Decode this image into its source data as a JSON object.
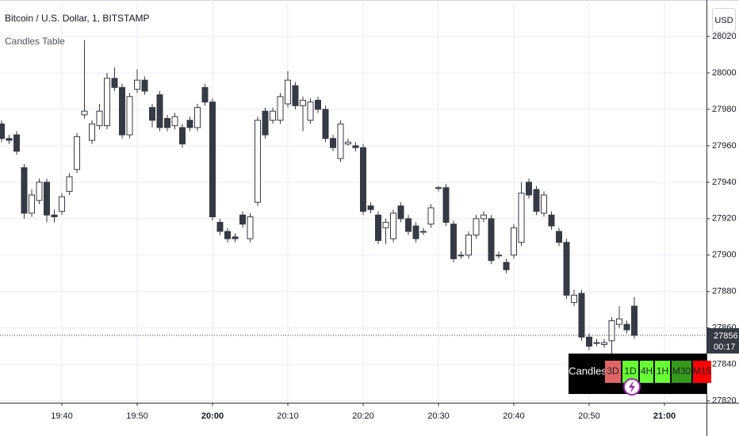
{
  "chart_data": {
    "type": "candlestick",
    "title": "Bitcoin / U.S. Dollar, 1, BITSTAMP",
    "subtitle": "Candles Table",
    "currency": "USD",
    "up_color": "#ffffff",
    "down_color": "#363a45",
    "border_color": "#363a45",
    "x": [
      "19:32",
      "19:33",
      "19:34",
      "19:35",
      "19:36",
      "19:37",
      "19:38",
      "19:39",
      "19:40",
      "19:41",
      "19:42",
      "19:43",
      "19:44",
      "19:45",
      "19:46",
      "19:47",
      "19:48",
      "19:49",
      "19:50",
      "19:51",
      "19:52",
      "19:53",
      "19:54",
      "19:55",
      "19:56",
      "19:57",
      "19:58",
      "19:59",
      "20:00",
      "20:01",
      "20:02",
      "20:03",
      "20:04",
      "20:05",
      "20:06",
      "20:07",
      "20:08",
      "20:09",
      "20:10",
      "20:11",
      "20:12",
      "20:13",
      "20:14",
      "20:15",
      "20:16",
      "20:17",
      "20:18",
      "20:19",
      "20:20",
      "20:21",
      "20:22",
      "20:23",
      "20:24",
      "20:25",
      "20:26",
      "20:27",
      "20:28",
      "20:29",
      "20:30",
      "20:31",
      "20:32",
      "20:33",
      "20:34",
      "20:35",
      "20:36",
      "20:37",
      "20:38",
      "20:39",
      "20:40",
      "20:41",
      "20:42",
      "20:43",
      "20:44",
      "20:45",
      "20:46",
      "20:47",
      "20:48",
      "20:49",
      "20:50",
      "20:51",
      "20:52",
      "20:53",
      "20:54",
      "20:55",
      "20:56"
    ],
    "open": [
      27972,
      27964,
      27966,
      27948,
      27923,
      27930,
      27940,
      27922,
      27924,
      27935,
      27947,
      27977,
      27963,
      27971,
      27971,
      27997,
      27992,
      27966,
      27991,
      27996,
      27981,
      27988,
      27975,
      27971,
      27970,
      27974,
      27970,
      27992,
      27984,
      27918,
      27913,
      27910,
      27922,
      27909,
      27929,
      27979,
      27974,
      27974,
      27983,
      27993,
      27982,
      27974,
      27985,
      27980,
      27964,
      27953,
      27961,
      27960,
      27959,
      27927,
      27922,
      27915,
      27909,
      27927,
      27920,
      27916,
      27913,
      27917,
      27937,
      27937,
      27917,
      27900,
      27900,
      27911,
      27920,
      27920,
      27900,
      27896,
      27900,
      27907,
      27940,
      27936,
      27923,
      27922,
      27913,
      27907,
      27874,
      27879,
      27855,
      27852,
      27851,
      27853,
      27862,
      27862,
      27872
    ],
    "high": [
      27974,
      27966,
      27968,
      27950,
      27936,
      27942,
      27942,
      27925,
      27934,
      27945,
      27967,
      28018,
      27974,
      27983,
      28000,
      28003,
      27994,
      27989,
      28002,
      27998,
      27983,
      27990,
      27977,
      27978,
      27972,
      27976,
      27983,
      27994,
      27986,
      27920,
      27915,
      27912,
      27924,
      27923,
      27976,
      27981,
      27981,
      27989,
      28001,
      27995,
      27987,
      27986,
      27987,
      27982,
      27966,
      27974,
      27964,
      27962,
      27961,
      27929,
      27924,
      27920,
      27925,
      27929,
      27922,
      27918,
      27915,
      27928,
      27938,
      27939,
      27919,
      27902,
      27913,
      27922,
      27924,
      27922,
      27902,
      27898,
      27917,
      27940,
      27942,
      27938,
      27935,
      27924,
      27915,
      27909,
      27881,
      27881,
      27857,
      27854,
      27854,
      27866,
      27872,
      27864,
      27877
    ],
    "low": [
      27962,
      27961,
      27955,
      27920,
      27921,
      27928,
      27918,
      27918,
      27922,
      27933,
      27945,
      27975,
      27961,
      27969,
      27969,
      27990,
      27964,
      27964,
      27989,
      27988,
      27970,
      27968,
      27968,
      27969,
      27959,
      27968,
      27968,
      27982,
      27919,
      27911,
      27907,
      27907,
      27915,
      27907,
      27927,
      27964,
      27972,
      27972,
      27981,
      27980,
      27968,
      27972,
      27978,
      27962,
      27957,
      27951,
      27960,
      27957,
      27922,
      27923,
      27906,
      27906,
      27907,
      27918,
      27911,
      27907,
      27911,
      27915,
      27935,
      27916,
      27896,
      27898,
      27898,
      27909,
      27918,
      27895,
      27898,
      27890,
      27898,
      27905,
      27931,
      27922,
      27921,
      27914,
      27905,
      27876,
      27872,
      27853,
      27848,
      27850,
      27849,
      27845,
      27860,
      27857,
      27854
    ],
    "close": [
      27964,
      27963,
      27957,
      27923,
      27933,
      27940,
      27922,
      27921,
      27932,
      27943,
      27965,
      27979,
      27972,
      27979,
      27997,
      27992,
      27966,
      27987,
      27996,
      27990,
      27974,
      27970,
      27970,
      27976,
      27961,
      27970,
      27981,
      27984,
      27921,
      27913,
      27909,
      27909,
      27917,
      27921,
      27974,
      27966,
      27979,
      27987,
      27996,
      27982,
      27985,
      27984,
      27980,
      27964,
      27959,
      27972,
      27962,
      27959,
      27924,
      27925,
      27908,
      27918,
      27923,
      27920,
      27913,
      27909,
      27913,
      27926,
      27937,
      27918,
      27898,
      27900,
      27911,
      27920,
      27922,
      27897,
      27900,
      27892,
      27915,
      27934,
      27933,
      27924,
      27933,
      27916,
      27907,
      27878,
      27878,
      27855,
      27850,
      27852,
      27852,
      27864,
      27865,
      27859,
      27856
    ],
    "xlim": [
      "19:32",
      "21:06"
    ],
    "xticks": [
      "19:40",
      "19:50",
      "20:00",
      "20:10",
      "20:20",
      "20:30",
      "20:40",
      "20:50",
      "21:00"
    ],
    "ylim": [
      27819,
      28040
    ],
    "yticks": [
      27820,
      27840,
      27860,
      27880,
      27900,
      27920,
      27940,
      27960,
      27980,
      28000,
      28020
    ],
    "grid": true,
    "last_price": 27856,
    "countdown": "00:17",
    "table": {
      "title": "Candles",
      "cells": [
        {
          "label": "3D",
          "color": "#e06666"
        },
        {
          "label": "1D",
          "color": "#66ff33"
        },
        {
          "label": "4H",
          "color": "#66ff33"
        },
        {
          "label": "1H",
          "color": "#66ff33"
        },
        {
          "label": "M30",
          "color": "#339a1a"
        },
        {
          "label": "M15",
          "color": "#ff0000"
        }
      ]
    }
  }
}
